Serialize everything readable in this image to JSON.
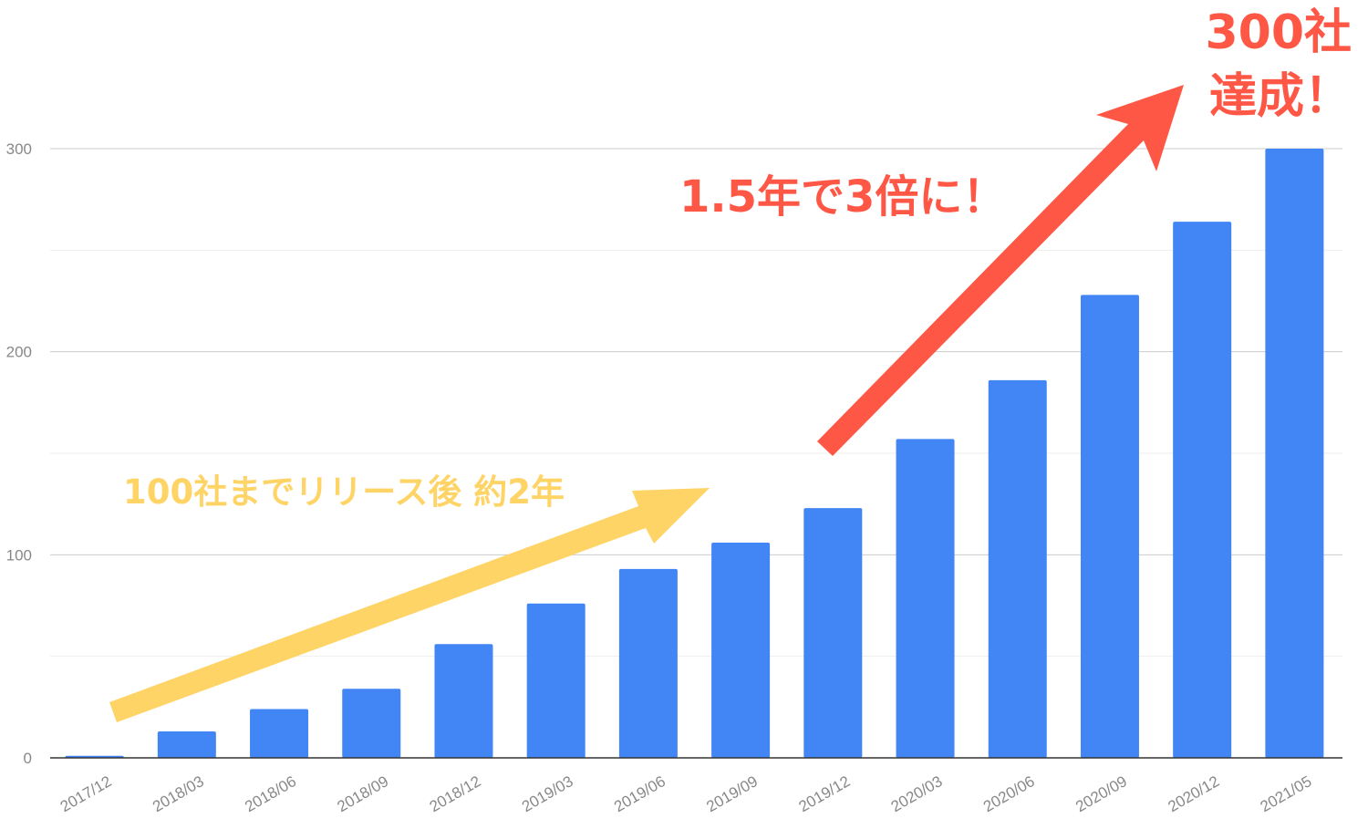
{
  "chart_data": {
    "type": "bar",
    "categories": [
      "2017/12",
      "2018/03",
      "2018/06",
      "2018/09",
      "2018/12",
      "2019/03",
      "2019/06",
      "2019/09",
      "2019/12",
      "2020/03",
      "2020/06",
      "2020/09",
      "2020/12",
      "2021/05"
    ],
    "values": [
      1,
      13,
      24,
      34,
      56,
      76,
      93,
      106,
      123,
      157,
      186,
      228,
      264,
      300
    ],
    "ylim": [
      0,
      300
    ],
    "yticks": [
      "0",
      "100",
      "200",
      "300"
    ],
    "grid": true,
    "bar_color": "#4285F4",
    "annotations": {
      "early": {
        "text": "100社までリリース後 約2年",
        "color": "#FFD466"
      },
      "growth": {
        "text": "1.5年で3倍に！",
        "color": "#FF5745"
      },
      "goal_line1": "300社",
      "goal_line2": "達成！"
    }
  }
}
